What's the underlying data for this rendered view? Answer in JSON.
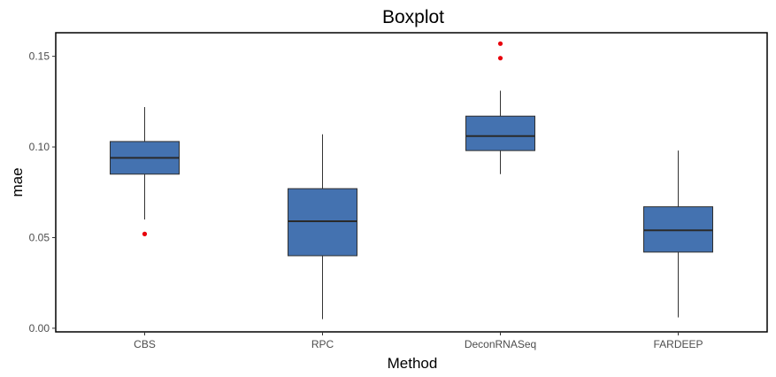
{
  "chart_data": {
    "type": "boxplot",
    "title": "Boxplot",
    "xlabel": "Method",
    "ylabel": "mae",
    "ylim": [
      -0.002,
      0.163
    ],
    "yticks": [
      "0.00",
      "0.05",
      "0.10",
      "0.15"
    ],
    "categories": [
      "CBS",
      "RPC",
      "DeconRNASeq",
      "FARDEEP"
    ],
    "boxes": [
      {
        "category": "CBS",
        "whisker_low": 0.06,
        "q1": 0.085,
        "median": 0.094,
        "q3": 0.103,
        "whisker_high": 0.122,
        "outliers": [
          0.052
        ]
      },
      {
        "category": "RPC",
        "whisker_low": 0.005,
        "q1": 0.04,
        "median": 0.059,
        "q3": 0.077,
        "whisker_high": 0.107,
        "outliers": []
      },
      {
        "category": "DeconRNASeq",
        "whisker_low": 0.085,
        "q1": 0.098,
        "median": 0.106,
        "q3": 0.117,
        "whisker_high": 0.131,
        "outliers": [
          0.149,
          0.157
        ]
      },
      {
        "category": "FARDEEP",
        "whisker_low": 0.006,
        "q1": 0.042,
        "median": 0.054,
        "q3": 0.067,
        "whisker_high": 0.098,
        "outliers": []
      }
    ],
    "grid": false,
    "colors": {
      "box_fill": "#4472b0",
      "box_stroke": "#2f2f2f",
      "median": "#2a2a2a",
      "whisker": "#333333",
      "outlier": "#e8000b"
    }
  }
}
